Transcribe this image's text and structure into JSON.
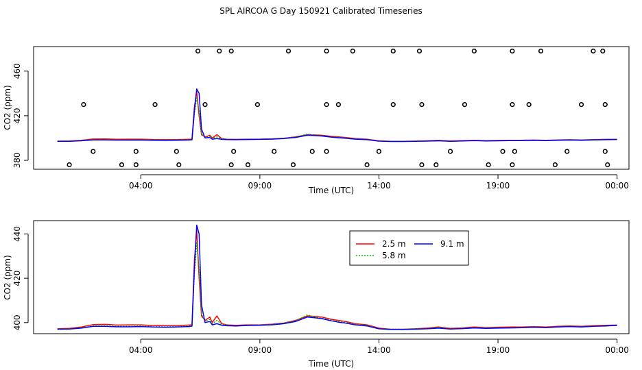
{
  "title": "SPL AIRCOA G  Day 150921  Calibrated Timeseries",
  "colors": {
    "line_2_5": "#ff0000",
    "line_5_8": "#00bb00",
    "line_9_1": "#0000ff",
    "axis": "#000000"
  },
  "chart_data": [
    {
      "type": "scatter",
      "title": "SPL AIRCOA G  Day 150921  Calibrated Timeseries",
      "xlabel": "Time (UTC)",
      "ylabel": "CO2 (ppm)",
      "xlim": [
        -0.5,
        24.5
      ],
      "ylim": [
        372,
        482
      ],
      "x_tick_values": [
        4,
        9,
        14,
        19,
        24
      ],
      "x_tick_labels": [
        "04:00",
        "09:00",
        "14:00",
        "19:00",
        "00:00"
      ],
      "y_ticks": [
        380,
        420,
        460
      ],
      "y_tick_labels": [
        "380",
        "420",
        "460"
      ],
      "calibration_points": {
        "x": [
          1.0,
          2.0,
          3.8,
          1.6,
          3.2,
          3.8,
          5.6,
          4.6,
          6.4,
          5.5,
          6.7,
          7.3,
          7.8,
          7.8,
          8.5,
          7.9,
          8.9,
          9.6,
          10.2,
          10.4,
          11.2,
          11.8,
          12.3,
          11.8,
          11.8,
          12.9,
          13.5,
          14.0,
          14.6,
          14.6,
          15.7,
          15.8,
          15.8,
          16.4,
          17.0,
          17.6,
          18.0,
          18.6,
          19.2,
          19.6,
          19.6,
          20.3,
          19.6,
          19.7,
          20.8,
          21.4,
          21.9,
          22.5,
          23.0,
          23.4,
          23.5,
          23.5,
          23.6
        ],
        "y": [
          376,
          388,
          376,
          430,
          376,
          388,
          376,
          430,
          478,
          388,
          430,
          478,
          478,
          376,
          376,
          388,
          430,
          388,
          478,
          376,
          388,
          430,
          430,
          478,
          388,
          478,
          376,
          388,
          430,
          478,
          478,
          430,
          376,
          376,
          388,
          430,
          478,
          376,
          388,
          430,
          478,
          430,
          376,
          388,
          478,
          376,
          388,
          430,
          478,
          478,
          430,
          388,
          376
        ],
        "marker": "open-circle"
      }
    },
    {
      "type": "line",
      "xlabel": "Time (UTC)",
      "ylabel": "CO2 (ppm)",
      "xlim": [
        -0.5,
        24.5
      ],
      "ylim": [
        395,
        446
      ],
      "x_tick_values": [
        4,
        9,
        14,
        19,
        24
      ],
      "x_tick_labels": [
        "04:00",
        "09:00",
        "14:00",
        "19:00",
        "00:00"
      ],
      "y_ticks": [
        400,
        420,
        440
      ],
      "y_tick_labels": [
        "400",
        "420",
        "440"
      ],
      "legend": {
        "placement": "top-right",
        "entries": [
          "2.5 m",
          "5.8 m",
          "9.1 m"
        ]
      },
      "series": [
        {
          "name": "2.5 m",
          "color": "#ff0000",
          "style": "solid",
          "x": [
            0.5,
            1.0,
            1.5,
            2.0,
            2.5,
            3.0,
            3.5,
            4.0,
            4.5,
            5.0,
            5.5,
            6.0,
            6.15,
            6.25,
            6.35,
            6.45,
            6.55,
            6.7,
            6.9,
            7.0,
            7.2,
            7.4,
            7.6,
            8.0,
            8.5,
            9.0,
            9.5,
            10.0,
            10.5,
            11.0,
            11.3,
            11.6,
            12.0,
            12.3,
            12.6,
            13.0,
            13.5,
            14.0,
            14.5,
            15.0,
            15.5,
            16.0,
            16.5,
            17.0,
            17.5,
            18.0,
            18.5,
            19.0,
            19.5,
            20.0,
            20.5,
            21.0,
            21.5,
            22.0,
            22.5,
            23.0,
            23.5,
            24.0
          ],
          "y": [
            397.2,
            397.4,
            398.0,
            399.1,
            399.2,
            398.9,
            399.0,
            399.0,
            398.7,
            398.6,
            398.6,
            398.9,
            399.0,
            428.0,
            442.0,
            420.0,
            403.0,
            401.0,
            402.5,
            400.0,
            403.0,
            399.5,
            399.0,
            398.8,
            399.0,
            399.0,
            399.3,
            399.8,
            401.0,
            403.0,
            402.8,
            402.5,
            401.5,
            401.0,
            400.5,
            399.5,
            399.0,
            397.5,
            397.0,
            397.0,
            397.2,
            397.5,
            398.0,
            397.4,
            397.6,
            398.0,
            397.7,
            397.9,
            398.0,
            398.0,
            398.2,
            398.0,
            398.3,
            398.5,
            398.3,
            398.6,
            398.8,
            398.9
          ]
        },
        {
          "name": "5.8 m",
          "color": "#00bb00",
          "style": "dotted",
          "x": [
            0.5,
            1.0,
            1.5,
            2.0,
            2.5,
            3.0,
            3.5,
            4.0,
            4.5,
            5.0,
            5.5,
            6.0,
            6.15,
            6.25,
            6.35,
            6.45,
            6.55,
            6.7,
            6.9,
            7.0,
            7.2,
            7.4,
            7.6,
            8.0,
            8.5,
            9.0,
            9.5,
            10.0,
            10.5,
            11.0,
            11.3,
            11.6,
            12.0,
            12.3,
            12.6,
            13.0,
            13.5,
            14.0,
            14.5,
            15.0,
            15.5,
            16.0,
            16.5,
            17.0,
            17.5,
            18.0,
            18.5,
            19.0,
            19.5,
            20.0,
            20.5,
            21.0,
            21.5,
            22.0,
            22.5,
            23.0,
            23.5,
            24.0
          ],
          "y": [
            397.0,
            397.2,
            397.7,
            398.5,
            398.5,
            398.3,
            398.3,
            398.4,
            398.2,
            398.1,
            398.2,
            398.4,
            398.6,
            422.0,
            436.0,
            424.0,
            404.0,
            400.5,
            401.5,
            399.5,
            401.0,
            399.2,
            398.8,
            398.6,
            398.8,
            398.9,
            399.2,
            399.7,
            400.8,
            403.5,
            402.5,
            402.0,
            401.0,
            400.5,
            400.0,
            399.2,
            398.7,
            397.3,
            397.0,
            397.0,
            397.2,
            397.3,
            397.8,
            397.2,
            397.4,
            397.7,
            397.5,
            397.6,
            397.7,
            397.8,
            398.0,
            397.8,
            398.1,
            398.3,
            398.1,
            398.4,
            398.6,
            398.8
          ]
        },
        {
          "name": "9.1 m",
          "color": "#0000ff",
          "style": "solid",
          "x": [
            0.5,
            1.0,
            1.5,
            2.0,
            2.5,
            3.0,
            3.5,
            4.0,
            4.5,
            5.0,
            5.5,
            6.0,
            6.15,
            6.25,
            6.35,
            6.45,
            6.55,
            6.7,
            6.9,
            7.0,
            7.2,
            7.4,
            7.6,
            8.0,
            8.5,
            9.0,
            9.5,
            10.0,
            10.5,
            11.0,
            11.3,
            11.6,
            12.0,
            12.3,
            12.6,
            13.0,
            13.5,
            14.0,
            14.5,
            15.0,
            15.5,
            16.0,
            16.5,
            17.0,
            17.5,
            18.0,
            18.5,
            19.0,
            19.5,
            20.0,
            20.5,
            21.0,
            21.5,
            22.0,
            22.5,
            23.0,
            23.5,
            24.0
          ],
          "y": [
            397.0,
            397.1,
            397.5,
            398.3,
            398.3,
            398.1,
            398.1,
            398.2,
            398.0,
            397.9,
            398.0,
            398.2,
            398.4,
            424.0,
            444.0,
            440.0,
            408.0,
            400.0,
            400.5,
            399.0,
            399.5,
            398.8,
            398.6,
            398.5,
            398.7,
            398.8,
            399.0,
            399.5,
            400.5,
            402.5,
            402.2,
            401.8,
            400.8,
            400.2,
            399.8,
            399.0,
            398.5,
            397.2,
            396.9,
            396.9,
            397.0,
            397.2,
            397.5,
            397.1,
            397.3,
            397.6,
            397.4,
            397.5,
            397.6,
            397.7,
            397.9,
            397.7,
            398.0,
            398.2,
            398.0,
            398.3,
            398.5,
            398.7
          ]
        }
      ]
    }
  ]
}
